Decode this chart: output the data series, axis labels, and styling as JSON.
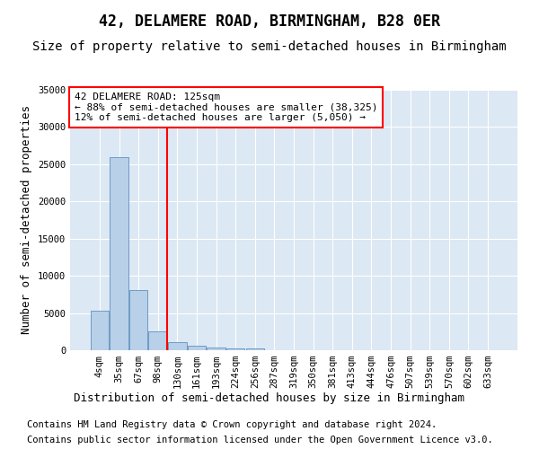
{
  "title": "42, DELAMERE ROAD, BIRMINGHAM, B28 0ER",
  "subtitle": "Size of property relative to semi-detached houses in Birmingham",
  "xlabel": "Distribution of semi-detached houses by size in Birmingham",
  "ylabel": "Number of semi-detached properties",
  "footer_line1": "Contains HM Land Registry data © Crown copyright and database right 2024.",
  "footer_line2": "Contains public sector information licensed under the Open Government Licence v3.0.",
  "bin_labels": [
    "4sqm",
    "35sqm",
    "67sqm",
    "98sqm",
    "130sqm",
    "161sqm",
    "193sqm",
    "224sqm",
    "256sqm",
    "287sqm",
    "319sqm",
    "350sqm",
    "381sqm",
    "413sqm",
    "444sqm",
    "476sqm",
    "507sqm",
    "539sqm",
    "570sqm",
    "602sqm",
    "633sqm"
  ],
  "bar_values": [
    5300,
    26000,
    8100,
    2500,
    1100,
    600,
    350,
    300,
    200,
    50,
    0,
    0,
    0,
    0,
    0,
    0,
    0,
    0,
    0,
    0,
    0
  ],
  "bar_color": "#b8d0e8",
  "bar_edge_color": "#6090c0",
  "vline_pos": 3.48,
  "vline_color": "red",
  "ylim": [
    0,
    35000
  ],
  "yticks": [
    0,
    5000,
    10000,
    15000,
    20000,
    25000,
    30000,
    35000
  ],
  "annotation_line1": "42 DELAMERE ROAD: 125sqm",
  "annotation_line2": "← 88% of semi-detached houses are smaller (38,325)",
  "annotation_line3": "12% of semi-detached houses are larger (5,050) →",
  "background_color": "#dce8f4",
  "grid_color": "#ffffff",
  "title_fontsize": 12,
  "subtitle_fontsize": 10,
  "axis_label_fontsize": 9,
  "tick_fontsize": 7.5,
  "footer_fontsize": 7.5
}
